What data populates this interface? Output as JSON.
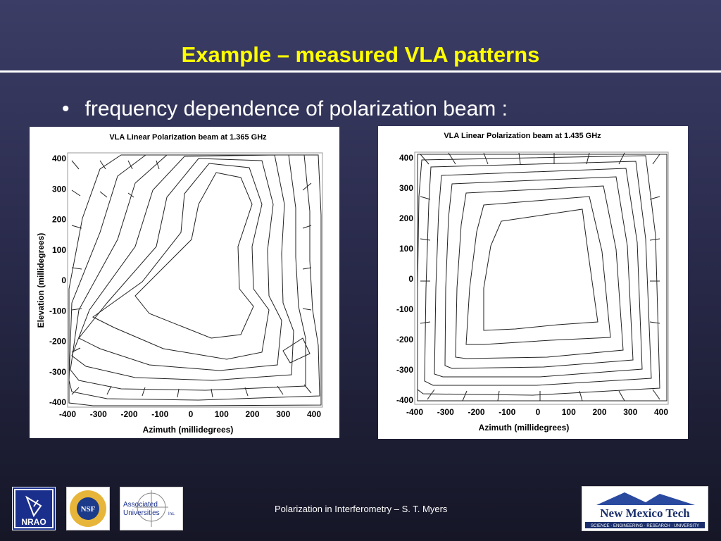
{
  "slide": {
    "title": "Example – measured VLA patterns",
    "bullet_marker": "•",
    "bullet_text": "frequency dependence of polarization beam :"
  },
  "plots": [
    {
      "title": "VLA  Linear  Polarization  beam  at  1.365  GHz",
      "xlabel": "Azimuth  (millidegrees)",
      "ylabel": "Elevation  (millidegrees)",
      "xticks": [
        "-400",
        "-300",
        "-200",
        "-100",
        "0",
        "100",
        "200",
        "300",
        "400"
      ],
      "yticks": [
        "400",
        "300",
        "200",
        "100",
        "0",
        "-100",
        "-200",
        "-300",
        "-400"
      ]
    },
    {
      "title": "VLA  Linear  Polarization  beam  at  1.435  GHz",
      "xlabel": "Azimuth  (millidegrees)",
      "ylabel": "",
      "xticks": [
        "-400",
        "-300",
        "-200",
        "-100",
        "0",
        "100",
        "200",
        "300",
        "400"
      ],
      "yticks": [
        "400",
        "300",
        "200",
        "100",
        "0",
        "-100",
        "-200",
        "-300",
        "-400"
      ]
    }
  ],
  "footer": {
    "text": "Polarization in Interferometry – S. T. Myers",
    "logos": {
      "nrao": "NRAO",
      "nsf": "NSF",
      "aui_line1": "Associated",
      "aui_line2": "Universities",
      "aui_suffix": "Inc.",
      "nmt_name": "New Mexico Tech",
      "nmt_tagline": "SCIENCE · ENGINEERING · RESEARCH · UNIVERSITY"
    }
  },
  "colors": {
    "title": "#ffff00",
    "text": "#ffffff",
    "nrao_blue": "#1a2f8c",
    "nmt_blue": "#2a4aa0"
  }
}
